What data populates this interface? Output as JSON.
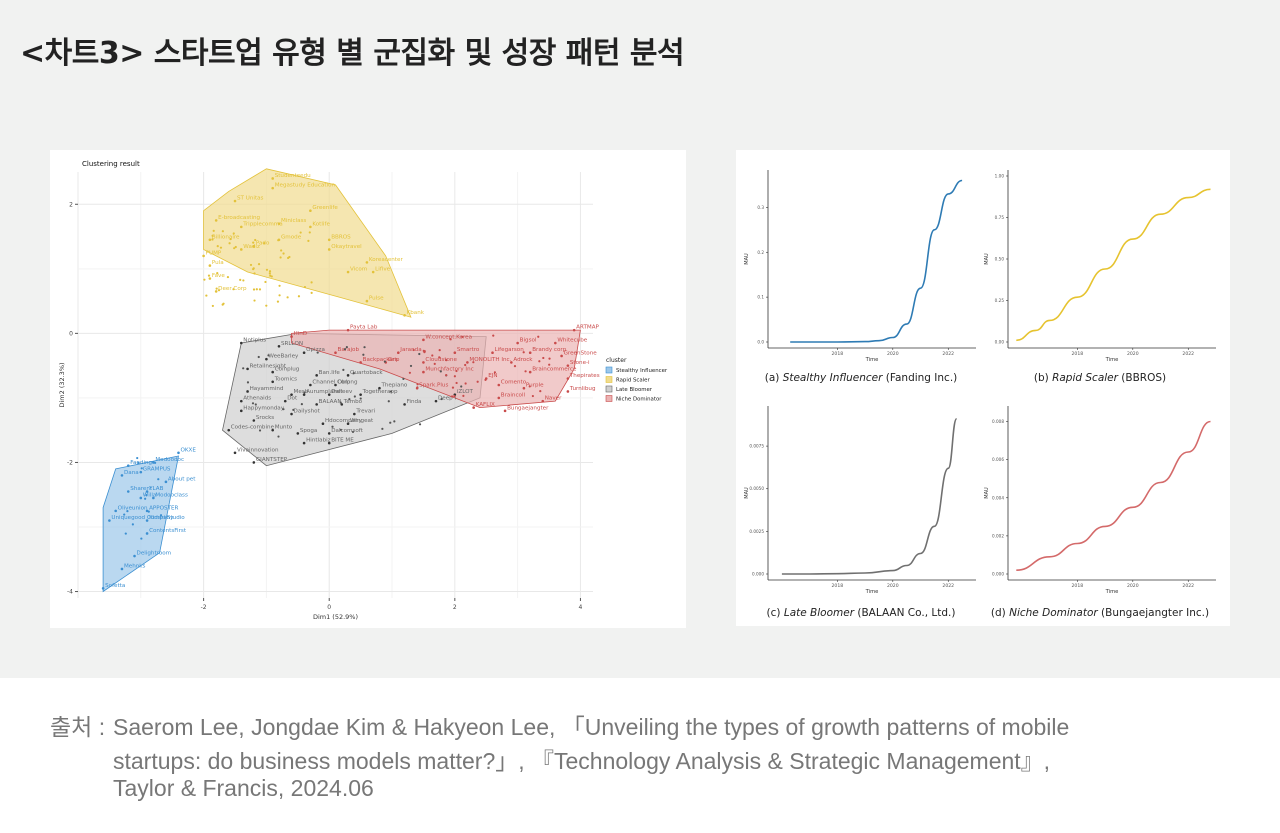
{
  "page": {
    "title": "<차트3>  스타트업 유형 별 군집화 및 성장 패턴 분석"
  },
  "source": {
    "label": "출처 : ",
    "lines": [
      "Saerom Lee, Jongdae Kim & Hakyeon Lee, 「Unveiling the types of growth patterns of mobile",
      "startups: do business models matter?」, 『Technology Analysis & Strategic Management』,",
      "Taylor & Francis, 2024.06"
    ]
  },
  "chart_data": [
    {
      "type": "scatter",
      "title": "Clustering result",
      "xlabel": "Dim1 (52.9%)",
      "ylabel": "Dim2 (32.3%)",
      "xlim": [
        -4,
        4.2
      ],
      "ylim": [
        -4.1,
        2.5
      ],
      "xticks": [
        -2,
        0,
        2,
        4
      ],
      "yticks": [
        -4,
        -2,
        0,
        2
      ],
      "grid": true,
      "legend": {
        "title": "cluster",
        "position": "right"
      },
      "series": [
        {
          "name": "Stealthy Influencer",
          "color": "#3b8fd1",
          "fill": "#9cc7ea",
          "marker": "circle",
          "hull": [
            [
              -3.6,
              -4.0
            ],
            [
              -2.7,
              -3.4
            ],
            [
              -2.4,
              -1.9
            ],
            [
              -3.4,
              -2.1
            ],
            [
              -3.6,
              -2.7
            ]
          ],
          "points": [
            {
              "label": "Fanding",
              "x": -3.2,
              "y": -2.05
            },
            {
              "label": "OKXE",
              "x": -2.4,
              "y": -1.85
            },
            {
              "label": "Modoodoc",
              "x": -2.8,
              "y": -2.0
            },
            {
              "label": "Dana",
              "x": -3.3,
              "y": -2.2
            },
            {
              "label": "GRAMPUS",
              "x": -3.0,
              "y": -2.15
            },
            {
              "label": "About pet",
              "x": -2.6,
              "y": -2.3
            },
            {
              "label": "Sharent",
              "x": -3.2,
              "y": -2.45
            },
            {
              "label": "YLAB",
              "x": -2.9,
              "y": -2.45
            },
            {
              "label": "Willa",
              "x": -3.0,
              "y": -2.55
            },
            {
              "label": "Modooclass",
              "x": -2.8,
              "y": -2.55
            },
            {
              "label": "Oliveunion",
              "x": -3.4,
              "y": -2.75
            },
            {
              "label": "APPOSTER",
              "x": -2.9,
              "y": -2.75
            },
            {
              "label": "Uniquegood Company",
              "x": -3.5,
              "y": -2.9
            },
            {
              "label": "Kidari Studio",
              "x": -2.9,
              "y": -2.9
            },
            {
              "label": "ContentsFirst",
              "x": -2.9,
              "y": -3.1
            },
            {
              "label": "Delightroom",
              "x": -3.1,
              "y": -3.45
            },
            {
              "label": "Mehnks",
              "x": -3.3,
              "y": -3.65
            },
            {
              "label": "Sofetta",
              "x": -3.6,
              "y": -3.95
            }
          ]
        },
        {
          "name": "Rapid Scaler",
          "color": "#e3c23a",
          "fill": "#f1dc8e",
          "marker": "triangle",
          "hull": [
            [
              -1.0,
              2.55
            ],
            [
              0.1,
              2.3
            ],
            [
              0.9,
              1.2
            ],
            [
              1.3,
              0.25
            ],
            [
              0.2,
              0.55
            ],
            [
              -1.3,
              0.95
            ],
            [
              -2.0,
              1.3
            ],
            [
              -2.0,
              1.9
            ],
            [
              -1.6,
              2.2
            ]
          ],
          "points": [
            {
              "label": "Studenteedu",
              "x": -0.9,
              "y": 2.4
            },
            {
              "label": "Megastudy Education",
              "x": -0.9,
              "y": 2.25
            },
            {
              "label": "ST Unitas",
              "x": -1.5,
              "y": 2.05
            },
            {
              "label": "Greenlife",
              "x": -0.3,
              "y": 1.9
            },
            {
              "label": "E-broadcasting",
              "x": -1.8,
              "y": 1.75
            },
            {
              "label": "Miniclass",
              "x": -0.8,
              "y": 1.7
            },
            {
              "label": "Kotlife",
              "x": -0.3,
              "y": 1.65
            },
            {
              "label": "Tripplecomma",
              "x": -1.4,
              "y": 1.65
            },
            {
              "label": "Billionaire",
              "x": -1.9,
              "y": 1.45
            },
            {
              "label": "Gmode",
              "x": -0.8,
              "y": 1.45
            },
            {
              "label": "BBROS",
              "x": 0.0,
              "y": 1.45
            },
            {
              "label": "Wadiz",
              "x": -1.4,
              "y": 1.3
            },
            {
              "label": "Pado",
              "x": -1.2,
              "y": 1.35
            },
            {
              "label": "Okaytravel",
              "x": 0.0,
              "y": 1.3
            },
            {
              "label": "PUMP",
              "x": -2.0,
              "y": 1.2
            },
            {
              "label": "Koreacenter",
              "x": 0.6,
              "y": 1.1
            },
            {
              "label": "Pula",
              "x": -1.9,
              "y": 1.05
            },
            {
              "label": "Lifive",
              "x": 0.7,
              "y": 0.95
            },
            {
              "label": "Fave",
              "x": -1.9,
              "y": 0.85
            },
            {
              "label": "Vicom",
              "x": 0.3,
              "y": 0.95
            },
            {
              "label": "Deer Corp",
              "x": -1.8,
              "y": 0.65
            },
            {
              "label": "Pulse",
              "x": 0.6,
              "y": 0.5
            },
            {
              "label": "Kbank",
              "x": 1.2,
              "y": 0.28
            }
          ]
        },
        {
          "name": "Late Bloomer",
          "color": "#666666",
          "fill": "#cfcfcf",
          "marker": "square",
          "hull": [
            [
              -1.4,
              -0.15
            ],
            [
              -0.5,
              0.0
            ],
            [
              2.5,
              -0.05
            ],
            [
              2.4,
              -1.0
            ],
            [
              1.0,
              -1.55
            ],
            [
              -1.0,
              -2.05
            ],
            [
              -1.7,
              -1.5
            ]
          ],
          "points": [
            {
              "label": "Notiplus",
              "x": -1.4,
              "y": -0.15
            },
            {
              "label": "SRLLON",
              "x": -0.8,
              "y": -0.2
            },
            {
              "label": "Opizza",
              "x": -0.4,
              "y": -0.3
            },
            {
              "label": "WeeBarley",
              "x": -1.0,
              "y": -0.4
            },
            {
              "label": "Retailnesight",
              "x": -1.3,
              "y": -0.55
            },
            {
              "label": "Coinplug",
              "x": -0.9,
              "y": -0.6
            },
            {
              "label": "Ban.life",
              "x": -0.2,
              "y": -0.65
            },
            {
              "label": "Quartoback",
              "x": 0.3,
              "y": -0.65
            },
            {
              "label": "Toomics",
              "x": -0.9,
              "y": -0.75
            },
            {
              "label": "Channel Corp",
              "x": -0.3,
              "y": -0.8
            },
            {
              "label": "Oblong",
              "x": 0.1,
              "y": -0.8
            },
            {
              "label": "Thepiano",
              "x": 0.8,
              "y": -0.85
            },
            {
              "label": "Hayammind",
              "x": -1.3,
              "y": -0.9
            },
            {
              "label": "Mesh",
              "x": -0.6,
              "y": -0.95
            },
            {
              "label": "Aurumplanet",
              "x": -0.4,
              "y": -0.95
            },
            {
              "label": "Dalleev",
              "x": 0.0,
              "y": -0.95
            },
            {
              "label": "Togetherapp",
              "x": 0.5,
              "y": -0.95
            },
            {
              "label": "Athenaids",
              "x": -1.4,
              "y": -1.05
            },
            {
              "label": "Dot",
              "x": -0.7,
              "y": -1.05
            },
            {
              "label": "BALAAN",
              "x": -0.2,
              "y": -1.1
            },
            {
              "label": "Tembo",
              "x": 0.2,
              "y": -1.1
            },
            {
              "label": "Finda",
              "x": 1.2,
              "y": -1.1
            },
            {
              "label": "Happymonday",
              "x": -1.4,
              "y": -1.2
            },
            {
              "label": "Dailyshot",
              "x": -0.6,
              "y": -1.25
            },
            {
              "label": "Trevari",
              "x": 0.4,
              "y": -1.25
            },
            {
              "label": "Srocks",
              "x": -1.2,
              "y": -1.35
            },
            {
              "label": "Hdocompany",
              "x": -0.1,
              "y": -1.4
            },
            {
              "label": "Wingeat",
              "x": 0.3,
              "y": -1.4
            },
            {
              "label": "Codes-combine",
              "x": -1.6,
              "y": -1.5
            },
            {
              "label": "Munto",
              "x": -0.9,
              "y": -1.5
            },
            {
              "label": "Spoga",
              "x": -0.5,
              "y": -1.55
            },
            {
              "label": "Dalcomsoft",
              "x": 0.0,
              "y": -1.55
            },
            {
              "label": "Hintlabiz",
              "x": -0.4,
              "y": -1.7
            },
            {
              "label": "BITE ME",
              "x": 0.0,
              "y": -1.7
            },
            {
              "label": "Vivainnovation",
              "x": -1.5,
              "y": -1.85
            },
            {
              "label": "GIANTSTEP",
              "x": -1.2,
              "y": -2.0
            },
            {
              "label": "Deep I",
              "x": 1.7,
              "y": -1.05
            },
            {
              "label": "iZLOT",
              "x": 2.0,
              "y": -0.95
            }
          ]
        },
        {
          "name": "Niche Dominator",
          "color": "#c94b4b",
          "fill": "#ebb3b3",
          "marker": "star",
          "hull": [
            [
              -0.6,
              0.0
            ],
            [
              0.0,
              0.05
            ],
            [
              4.0,
              0.05
            ],
            [
              3.9,
              -0.55
            ],
            [
              3.6,
              -1.05
            ],
            [
              2.4,
              -1.15
            ],
            [
              0.8,
              -0.55
            ],
            [
              -0.6,
              -0.15
            ]
          ],
          "points": [
            {
              "label": "ARTMAP",
              "x": 3.9,
              "y": 0.05
            },
            {
              "label": "Payta Lab",
              "x": 0.3,
              "y": 0.05
            },
            {
              "label": "HinD",
              "x": -0.6,
              "y": -0.05
            },
            {
              "label": "W.concept.Korea",
              "x": 1.5,
              "y": -0.1
            },
            {
              "label": "Bigsol",
              "x": 3.0,
              "y": -0.15
            },
            {
              "label": "Whitecube",
              "x": 3.6,
              "y": -0.15
            },
            {
              "label": "Barajob",
              "x": 0.1,
              "y": -0.3
            },
            {
              "label": "Jaranda",
              "x": 1.1,
              "y": -0.3
            },
            {
              "label": "Smartro",
              "x": 2.0,
              "y": -0.3
            },
            {
              "label": "Lifegarson",
              "x": 2.6,
              "y": -0.3
            },
            {
              "label": "Brandy corp",
              "x": 3.2,
              "y": -0.3
            },
            {
              "label": "GreenStone",
              "x": 3.7,
              "y": -0.35
            },
            {
              "label": "Backpackers",
              "x": 0.5,
              "y": -0.45
            },
            {
              "label": "Grip",
              "x": 0.9,
              "y": -0.45
            },
            {
              "label": "Cloudstone",
              "x": 1.5,
              "y": -0.45
            },
            {
              "label": "MONOLITH Inc.",
              "x": 2.2,
              "y": -0.45
            },
            {
              "label": "Adrock",
              "x": 2.9,
              "y": -0.45
            },
            {
              "label": "Stone-i",
              "x": 3.8,
              "y": -0.5
            },
            {
              "label": "Munchfactory Inc",
              "x": 1.5,
              "y": -0.6
            },
            {
              "label": "Braincommerce",
              "x": 3.2,
              "y": -0.6
            },
            {
              "label": "EJN",
              "x": 2.5,
              "y": -0.7
            },
            {
              "label": "Thepirates",
              "x": 3.8,
              "y": -0.7
            },
            {
              "label": "Comento",
              "x": 2.7,
              "y": -0.8
            },
            {
              "label": "Spark.Plus",
              "x": 1.4,
              "y": -0.85
            },
            {
              "label": "Purple",
              "x": 3.1,
              "y": -0.85
            },
            {
              "label": "Turnlibug",
              "x": 3.8,
              "y": -0.9
            },
            {
              "label": "Braincoll",
              "x": 2.7,
              "y": -1.0
            },
            {
              "label": "Naver",
              "x": 3.4,
              "y": -1.05
            },
            {
              "label": "KAFLIX",
              "x": 2.3,
              "y": -1.15
            },
            {
              "label": "Bungaejangter",
              "x": 2.8,
              "y": -1.2
            }
          ]
        }
      ]
    },
    {
      "type": "line",
      "caption_prefix": "(a) ",
      "caption_italic": "Stealthy Influencer",
      "caption_suffix": " (Fanding Inc.)",
      "xlabel": "Time",
      "ylabel": "MAU",
      "xticks": [
        "2018",
        "2020",
        "2022"
      ],
      "yticks": [
        "0.0",
        "0.1",
        "0.2",
        "0.3"
      ],
      "ylim": [
        0,
        0.37
      ],
      "color": "#2e7bb4",
      "x": [
        2016.3,
        2017,
        2018,
        2019,
        2019.5,
        2020,
        2020.5,
        2021,
        2021.5,
        2022,
        2022.5
      ],
      "y": [
        0.0,
        0.0,
        0.0,
        0.001,
        0.003,
        0.01,
        0.04,
        0.12,
        0.25,
        0.33,
        0.36
      ]
    },
    {
      "type": "line",
      "caption_prefix": "(b) ",
      "caption_italic": "Rapid Scaler",
      "caption_suffix": " (BBROS)",
      "xlabel": "Time",
      "ylabel": "MAU",
      "xticks": [
        "2018",
        "2020",
        "2022"
      ],
      "yticks": [
        "0.00",
        "0.25",
        "0.50",
        "0.75",
        "1.00"
      ],
      "ylim": [
        0,
        1.0
      ],
      "color": "#e6c32f",
      "x": [
        2015.8,
        2016.5,
        2017,
        2018,
        2019,
        2020,
        2021,
        2022,
        2022.8
      ],
      "y": [
        0.01,
        0.07,
        0.13,
        0.27,
        0.44,
        0.62,
        0.77,
        0.87,
        0.92
      ]
    },
    {
      "type": "line",
      "caption_prefix": "(c) ",
      "caption_italic": "Late Bloomer",
      "caption_suffix": " (BALAAN Co., Ltd.)",
      "xlabel": "Time",
      "ylabel": "MAU",
      "xticks": [
        "2018",
        "2020",
        "2022"
      ],
      "yticks": [
        "0.000",
        "0.0025",
        "0.0050",
        "0.0075"
      ],
      "ylim": [
        0,
        0.0095
      ],
      "color": "#707070",
      "x": [
        2016,
        2017,
        2018,
        2019,
        2020,
        2020.5,
        2021,
        2021.5,
        2022,
        2022.3
      ],
      "y": [
        0.0,
        0.0,
        2e-05,
        6e-05,
        0.0002,
        0.0005,
        0.0012,
        0.0028,
        0.0062,
        0.0091
      ]
    },
    {
      "type": "line",
      "caption_prefix": "(d) ",
      "caption_italic": "Niche Dominator",
      "caption_suffix": " (Bungaejangter Inc.)",
      "xlabel": "Time",
      "ylabel": "MAU",
      "xticks": [
        "2018",
        "2020",
        "2022"
      ],
      "yticks": [
        "0.000",
        "0.002",
        "0.004",
        "0.006",
        "0.008"
      ],
      "ylim": [
        0,
        0.0085
      ],
      "color": "#d46a6a",
      "x": [
        2015.8,
        2017,
        2018,
        2019,
        2020,
        2021,
        2022,
        2022.8
      ],
      "y": [
        0.0002,
        0.0009,
        0.0016,
        0.0025,
        0.0035,
        0.0048,
        0.0064,
        0.008
      ]
    }
  ]
}
